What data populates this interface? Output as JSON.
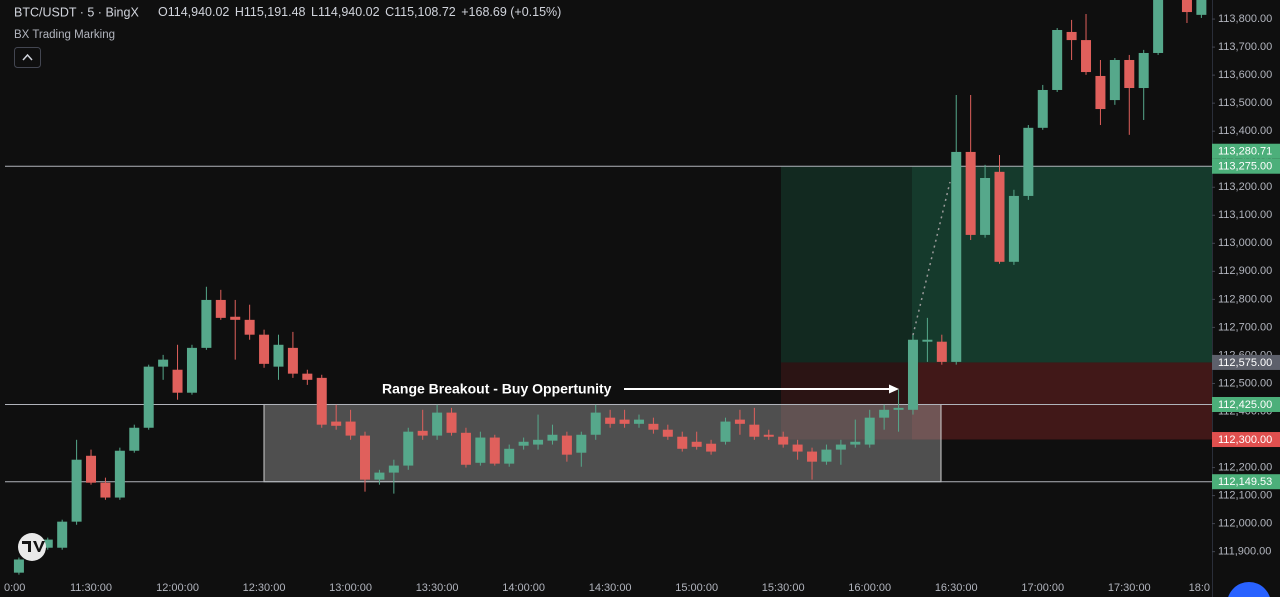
{
  "header": {
    "symbol": "BTC/USDT · 5 · BingX",
    "ohlc": [
      "O114,940.02",
      "H115,191.48",
      "L114,940.02",
      "C115,108.72",
      "+168.69 (+0.15%)"
    ],
    "indicator": "BX Trading Marking"
  },
  "chart_data": {
    "type": "candlestick",
    "categories": [
      "0:00",
      null,
      null,
      null,
      null,
      null,
      "11:30:00",
      null,
      null,
      null,
      null,
      null,
      "12:00:00",
      null,
      null,
      null,
      null,
      null,
      "12:30:00",
      null,
      null,
      null,
      null,
      null,
      "13:00:00",
      null,
      null,
      null,
      null,
      null,
      "13:30:00",
      null,
      null,
      null,
      null,
      null,
      "14:00:00",
      null,
      null,
      null,
      null,
      null,
      "14:30:00",
      null,
      null,
      null,
      null,
      null,
      "15:00:00",
      null,
      null,
      null,
      null,
      null,
      "15:30:00",
      null,
      null,
      null,
      null,
      null,
      "16:00:00",
      null,
      null,
      null,
      null,
      null,
      "16:30:00",
      null,
      null,
      null,
      null,
      null,
      "17:00:00",
      null,
      null,
      null,
      null,
      null,
      "17:30:00",
      null,
      null,
      null,
      null,
      null,
      "18:0"
    ],
    "open": [
      null,
      111825,
      111889,
      111914,
      111914,
      112007,
      112242,
      112146,
      112093,
      112260,
      112342,
      112560,
      112549,
      112467,
      112627,
      112798,
      112738,
      112727,
      112674,
      112560,
      112627,
      112535,
      112520,
      112364,
      112364,
      112314,
      112157,
      112182,
      112207,
      112331,
      112314,
      112396,
      112324,
      112217,
      112307,
      112214,
      112278,
      112282,
      112296,
      112314,
      112253,
      112317,
      112378,
      112371,
      112356,
      112356,
      112335,
      112310,
      112292,
      112285,
      112292,
      112371,
      112353,
      112317,
      112310,
      112282,
      112257,
      112221,
      112264,
      112282,
      112282,
      112378,
      112406,
      112406,
      112649,
      112649,
      112577,
      113326,
      113030,
      113255,
      112934,
      113169,
      113412,
      113547,
      113754,
      113725,
      113597,
      113511,
      113654,
      113554,
      113679,
      null,
      113868,
      113815,
      null
    ],
    "high": [
      null,
      111879,
      111943,
      111950,
      112014,
      112299,
      112264,
      112164,
      112271,
      112353,
      112567,
      112602,
      112638,
      112638,
      112845,
      112834,
      112798,
      112781,
      112692,
      112674,
      112684,
      112549,
      112531,
      112424,
      112406,
      112328,
      112192,
      112228,
      112342,
      112406,
      112424,
      112413,
      112342,
      112328,
      112317,
      112282,
      112307,
      112389,
      112353,
      112328,
      112328,
      112424,
      112406,
      112406,
      112389,
      112378,
      112353,
      112328,
      112328,
      112299,
      112378,
      112406,
      112413,
      112335,
      112328,
      112299,
      112271,
      112282,
      112299,
      112371,
      112406,
      112424,
      112478,
      112674,
      112734,
      112674,
      113529,
      113529,
      113280,
      113315,
      113191,
      113422,
      113565,
      113768,
      113797,
      113818,
      113654,
      113661,
      113672,
      113690,
      113904,
      null,
      113886,
      113886,
      null
    ],
    "low": [
      null,
      111818,
      111879,
      111907,
      111907,
      111996,
      112139,
      112085,
      112085,
      112253,
      112335,
      112513,
      112442,
      112460,
      112620,
      112727,
      112585,
      112656,
      112556,
      112513,
      112520,
      112495,
      112342,
      112335,
      112299,
      112114,
      112139,
      112107,
      112192,
      112299,
      112299,
      112314,
      112200,
      112207,
      112207,
      112203,
      112264,
      112264,
      112282,
      112221,
      112203,
      112299,
      112342,
      112342,
      112342,
      112321,
      112299,
      112257,
      112264,
      112246,
      112282,
      112317,
      112299,
      112299,
      112271,
      112228,
      112157,
      112210,
      112210,
      112271,
      112271,
      112335,
      112328,
      112389,
      112577,
      112567,
      112567,
      113012,
      113020,
      112927,
      112923,
      113155,
      113405,
      113540,
      113654,
      113601,
      113422,
      113494,
      113387,
      113440,
      113672,
      null,
      113786,
      113804,
      null
    ],
    "close": [
      null,
      111872,
      111925,
      111943,
      112007,
      112228,
      112146,
      112093,
      112260,
      112342,
      112560,
      112585,
      112467,
      112627,
      112798,
      112734,
      112727,
      112674,
      112570,
      112638,
      112535,
      112513,
      112353,
      112349,
      112314,
      112157,
      112182,
      112207,
      112328,
      112314,
      112396,
      112324,
      112210,
      112307,
      112214,
      112267,
      112292,
      112299,
      112317,
      112246,
      112317,
      112396,
      112356,
      112356,
      112371,
      112335,
      112310,
      112267,
      112274,
      112257,
      112364,
      112356,
      112310,
      112310,
      112282,
      112257,
      112221,
      112264,
      112282,
      112292,
      112378,
      112406,
      112413,
      112656,
      112656,
      112577,
      113326,
      113030,
      113233,
      112934,
      113169,
      113412,
      113547,
      113761,
      113725,
      113611,
      113479,
      113654,
      113554,
      113679,
      113886,
      null,
      113825,
      113868,
      null
    ],
    "up_color": "#56a88b",
    "down_color": "#e0605c",
    "ylim": [
      111806,
      113868
    ],
    "yticks": [
      {
        "value": 111900,
        "label": "111,900.00"
      },
      {
        "value": 112000,
        "label": "112,000.00"
      },
      {
        "value": 112100,
        "label": "112,100.00"
      },
      {
        "value": 112200,
        "label": "112,200.00"
      },
      {
        "value": 112300,
        "label": "112,300.00"
      },
      {
        "value": 112400,
        "label": "112,400.00"
      },
      {
        "value": 112500,
        "label": "112,500.00"
      },
      {
        "value": 112600,
        "label": "112,600.00"
      },
      {
        "value": 112700,
        "label": "112,700.00"
      },
      {
        "value": 112800,
        "label": "112,800.00"
      },
      {
        "value": 112900,
        "label": "112,900.00"
      },
      {
        "value": 113000,
        "label": "113,000.00"
      },
      {
        "value": 113100,
        "label": "113,100.00"
      },
      {
        "value": 113200,
        "label": "113,200.00"
      },
      {
        "value": 113300,
        "label": "113,300.00"
      },
      {
        "value": 113400,
        "label": "113,400.00"
      },
      {
        "value": 113500,
        "label": "113,500.00"
      },
      {
        "value": 113600,
        "label": "113,600.00"
      },
      {
        "value": 113700,
        "label": "113,700.00"
      },
      {
        "value": 113800,
        "label": "113,800.00"
      }
    ],
    "grid": false,
    "price_labels": [
      {
        "value": 113280.71,
        "label": "113,280.71",
        "color": "#4caf7a",
        "line": false
      },
      {
        "value": 113275,
        "label": "113,275.00",
        "color": "#4caf7a",
        "line": true
      },
      {
        "value": 112575,
        "label": "112,575.00",
        "color": "#5d606b",
        "line": false
      },
      {
        "value": 112425,
        "label": "112,425.00",
        "color": "#4caf7a",
        "line": true
      },
      {
        "value": 112300,
        "label": "112,300.00",
        "color": "#e0504f",
        "line": false
      },
      {
        "value": 112149.53,
        "label": "112,149.53",
        "color": "#4caf7a",
        "line": true
      }
    ],
    "annotation": "Range Breakout - Buy Oppertunity"
  }
}
